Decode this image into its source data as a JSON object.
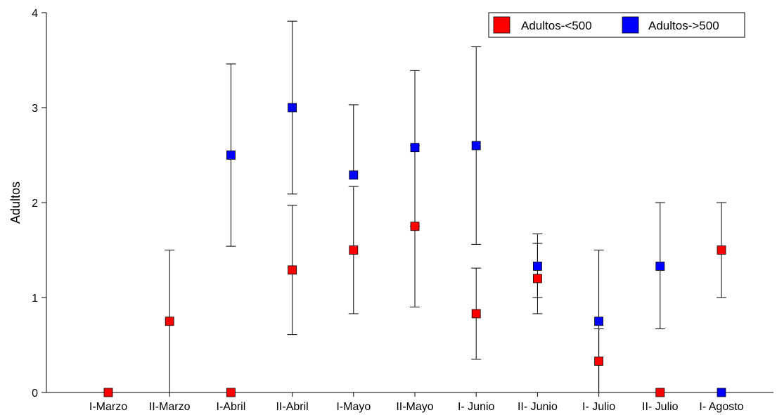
{
  "chart_data": {
    "type": "scatter",
    "title": "",
    "xlabel": "",
    "ylabel": "Adultos",
    "ylim": [
      0,
      4
    ],
    "yticks": [
      "0",
      "1",
      "2",
      "3",
      "4"
    ],
    "grid": false,
    "legend_position": "top-right",
    "categories": [
      "I-Marzo",
      "II-Marzo",
      "I-Abril",
      "II-Abril",
      "I-Mayo",
      "II-Mayo",
      "I- Junio",
      "II- Junio",
      "I- Julio",
      "II- Julio",
      "I- Agosto"
    ],
    "series": [
      {
        "name": "Adultos-<500",
        "color": "#ff0000",
        "values": [
          0,
          0.75,
          0,
          1.29,
          1.5,
          1.75,
          0.83,
          1.2,
          0.33,
          0,
          1.5
        ],
        "err_low": [
          null,
          0,
          null,
          0.61,
          0.83,
          0.9,
          0.35,
          0.83,
          0,
          null,
          1.0
        ],
        "err_high": [
          null,
          1.5,
          null,
          1.97,
          2.17,
          2.6,
          1.31,
          1.57,
          0.67,
          null,
          2.0
        ]
      },
      {
        "name": "Adultos->500",
        "color": "#0000ff",
        "values": [
          null,
          null,
          2.5,
          3.0,
          2.29,
          2.58,
          2.6,
          1.33,
          0.75,
          1.33,
          0
        ],
        "err_low": [
          null,
          null,
          1.54,
          2.09,
          null,
          1.75,
          1.56,
          1.0,
          0,
          0.67,
          null
        ],
        "err_high": [
          null,
          null,
          3.46,
          3.91,
          3.03,
          3.39,
          3.64,
          1.67,
          1.5,
          2.0,
          null
        ]
      }
    ]
  }
}
